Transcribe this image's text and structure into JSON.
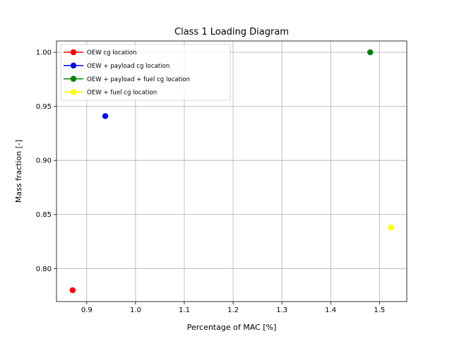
{
  "chart_data": {
    "type": "scatter",
    "title": "Class 1 Loading Diagram",
    "xlabel": "Percentage of MAC [%]",
    "ylabel": "Mass fraction [-]",
    "xlim": [
      0.838,
      1.556
    ],
    "ylim": [
      0.7695,
      1.0105
    ],
    "xticks": [
      0.9,
      1.0,
      1.1,
      1.2,
      1.3,
      1.4,
      1.5
    ],
    "xtick_labels": [
      "0.9",
      "1.0",
      "1.1",
      "1.2",
      "1.3",
      "1.4",
      "1.5"
    ],
    "yticks": [
      0.8,
      0.85,
      0.9,
      0.95,
      1.0
    ],
    "ytick_labels": [
      "0.80",
      "0.85",
      "0.90",
      "0.95",
      "1.00"
    ],
    "grid": true,
    "legend_position": "top-left",
    "series": [
      {
        "name": "OEW cg location",
        "color": "#ff0000",
        "x": [
          0.871
        ],
        "y": [
          0.78
        ]
      },
      {
        "name": "OEW + payload cg location",
        "color": "#0000ff",
        "x": [
          0.938
        ],
        "y": [
          0.941
        ]
      },
      {
        "name": "OEW + payload + fuel cg location",
        "color": "#008000",
        "x": [
          1.481
        ],
        "y": [
          1.0
        ]
      },
      {
        "name": "OEW + fuel cg location",
        "color": "#ffff00",
        "x": [
          1.523
        ],
        "y": [
          0.838
        ]
      }
    ]
  }
}
